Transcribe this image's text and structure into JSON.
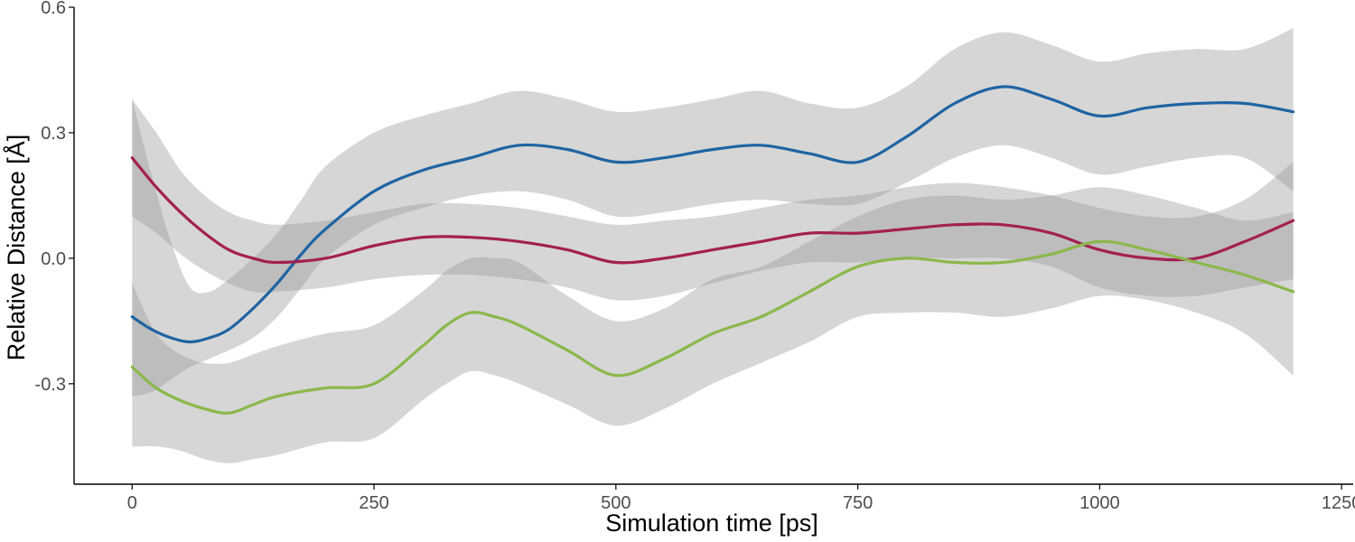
{
  "chart_data": {
    "type": "line",
    "title": "",
    "xlabel": "Simulation time [ps]",
    "ylabel": "Relative Distance [Å]",
    "xlim": [
      -60,
      1262
    ],
    "ylim": [
      -0.54,
      0.6
    ],
    "x_ticks": [
      0,
      250,
      500,
      750,
      1000,
      1250
    ],
    "x_tick_labels": [
      "0",
      "250",
      "500",
      "750",
      "1000",
      "1250"
    ],
    "y_ticks": [
      -0.3,
      0.0,
      0.3,
      0.6
    ],
    "y_tick_labels": [
      "-0.3",
      "0.0",
      "0.3",
      "0.6"
    ],
    "grid": false,
    "legend": "none",
    "series": [
      {
        "color": "#1F64A3",
        "x": [
          0,
          20,
          40,
          60,
          80,
          100,
          125,
          150,
          175,
          200,
          250,
          300,
          350,
          400,
          450,
          500,
          550,
          600,
          650,
          700,
          750,
          800,
          850,
          900,
          950,
          1000,
          1050,
          1100,
          1150,
          1200
        ],
        "y": [
          -0.14,
          -0.17,
          -0.19,
          -0.2,
          -0.19,
          -0.17,
          -0.12,
          -0.06,
          0.01,
          0.07,
          0.16,
          0.21,
          0.24,
          0.27,
          0.26,
          0.23,
          0.24,
          0.26,
          0.27,
          0.25,
          0.23,
          0.29,
          0.37,
          0.41,
          0.38,
          0.34,
          0.36,
          0.37,
          0.37,
          0.35
        ],
        "lower": [
          -0.33,
          -0.32,
          -0.29,
          -0.26,
          -0.24,
          -0.22,
          -0.19,
          -0.14,
          -0.07,
          0.0,
          0.08,
          0.12,
          0.15,
          0.16,
          0.14,
          0.1,
          0.11,
          0.13,
          0.14,
          0.13,
          0.13,
          0.18,
          0.24,
          0.27,
          0.24,
          0.2,
          0.22,
          0.24,
          0.24,
          0.16
        ],
        "upper": [
          0.38,
          0.2,
          0.04,
          -0.07,
          -0.08,
          -0.05,
          0.0,
          0.06,
          0.14,
          0.22,
          0.3,
          0.34,
          0.37,
          0.4,
          0.38,
          0.35,
          0.36,
          0.38,
          0.4,
          0.37,
          0.36,
          0.41,
          0.5,
          0.54,
          0.51,
          0.47,
          0.49,
          0.5,
          0.5,
          0.55
        ]
      },
      {
        "color": "#A3204F",
        "x": [
          0,
          25,
          50,
          75,
          100,
          125,
          150,
          200,
          250,
          300,
          350,
          400,
          450,
          500,
          550,
          600,
          650,
          700,
          750,
          800,
          850,
          900,
          950,
          1000,
          1050,
          1100,
          1150,
          1200
        ],
        "y": [
          0.24,
          0.17,
          0.11,
          0.06,
          0.02,
          0.0,
          -0.01,
          0.0,
          0.03,
          0.05,
          0.05,
          0.04,
          0.02,
          -0.01,
          0.0,
          0.02,
          0.04,
          0.06,
          0.06,
          0.07,
          0.08,
          0.08,
          0.06,
          0.02,
          0.0,
          0.0,
          0.04,
          0.09
        ],
        "lower": [
          0.1,
          0.06,
          0.01,
          -0.03,
          -0.06,
          -0.08,
          -0.08,
          -0.07,
          -0.05,
          -0.04,
          -0.04,
          -0.05,
          -0.07,
          -0.1,
          -0.09,
          -0.06,
          -0.03,
          -0.01,
          -0.01,
          0.0,
          0.0,
          0.0,
          -0.02,
          -0.07,
          -0.09,
          -0.09,
          -0.07,
          -0.05
        ],
        "upper": [
          0.38,
          0.3,
          0.21,
          0.15,
          0.11,
          0.09,
          0.08,
          0.09,
          0.11,
          0.13,
          0.13,
          0.12,
          0.1,
          0.08,
          0.09,
          0.1,
          0.12,
          0.14,
          0.15,
          0.17,
          0.18,
          0.17,
          0.15,
          0.12,
          0.1,
          0.1,
          0.14,
          0.23
        ]
      },
      {
        "color": "#8AB84B",
        "x": [
          0,
          25,
          50,
          75,
          100,
          125,
          150,
          200,
          250,
          300,
          325,
          350,
          375,
          400,
          450,
          500,
          550,
          600,
          650,
          700,
          750,
          800,
          850,
          900,
          950,
          1000,
          1050,
          1100,
          1150,
          1200
        ],
        "y": [
          -0.26,
          -0.31,
          -0.34,
          -0.36,
          -0.37,
          -0.35,
          -0.33,
          -0.31,
          -0.3,
          -0.21,
          -0.16,
          -0.13,
          -0.14,
          -0.16,
          -0.22,
          -0.28,
          -0.24,
          -0.18,
          -0.14,
          -0.08,
          -0.02,
          0.0,
          -0.01,
          -0.01,
          0.01,
          0.04,
          0.02,
          -0.01,
          -0.04,
          -0.08
        ],
        "lower": [
          -0.45,
          -0.45,
          -0.46,
          -0.48,
          -0.49,
          -0.48,
          -0.47,
          -0.44,
          -0.43,
          -0.34,
          -0.3,
          -0.27,
          -0.28,
          -0.3,
          -0.35,
          -0.4,
          -0.36,
          -0.3,
          -0.25,
          -0.2,
          -0.14,
          -0.13,
          -0.13,
          -0.14,
          -0.12,
          -0.09,
          -0.1,
          -0.13,
          -0.18,
          -0.28
        ],
        "upper": [
          -0.06,
          -0.18,
          -0.23,
          -0.25,
          -0.25,
          -0.23,
          -0.21,
          -0.18,
          -0.16,
          -0.08,
          -0.03,
          0.0,
          0.0,
          -0.01,
          -0.09,
          -0.15,
          -0.12,
          -0.05,
          -0.02,
          0.04,
          0.1,
          0.14,
          0.15,
          0.14,
          0.15,
          0.17,
          0.15,
          0.12,
          0.09,
          0.11
        ]
      }
    ]
  }
}
